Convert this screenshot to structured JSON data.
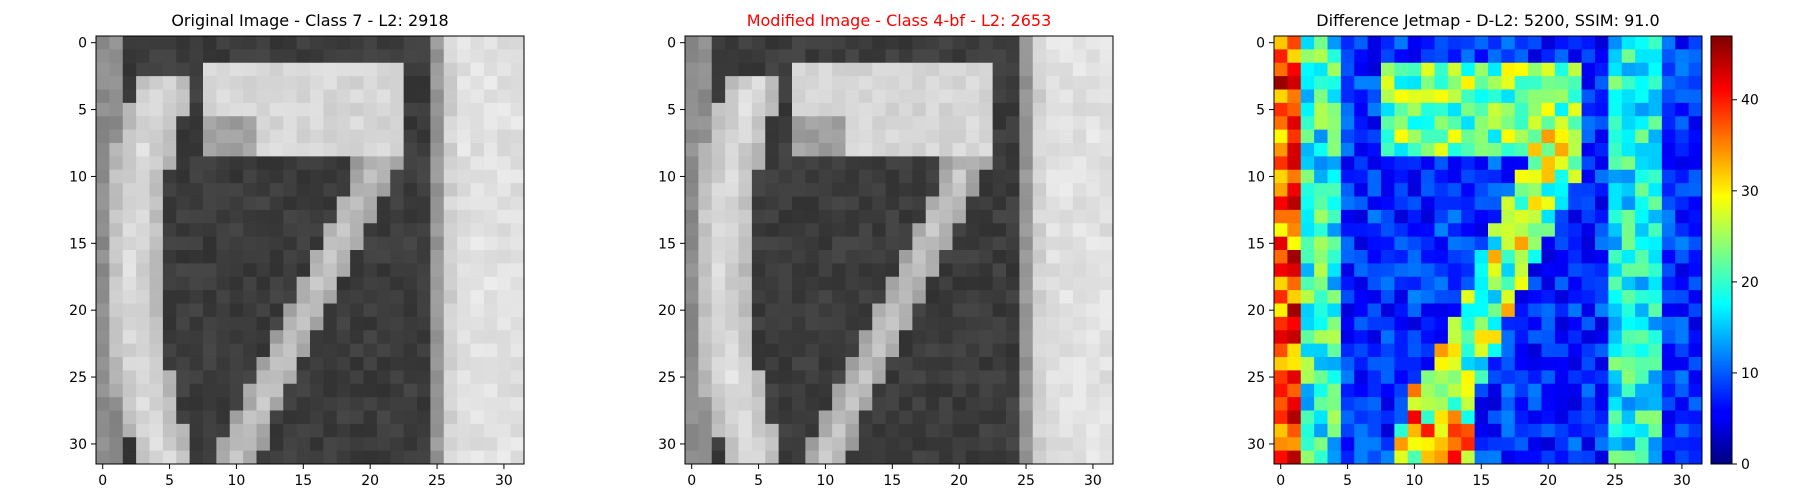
{
  "colors": {
    "modified_title": "#ff0000",
    "default_text": "#000000"
  },
  "chart_data": [
    {
      "type": "heatmap",
      "colormap": "gray",
      "title": "Original Image - Class 7 - L2: 2918",
      "grid": "32x32",
      "x_ticks": [
        "0",
        "5",
        "10",
        "15",
        "20",
        "25",
        "30"
      ],
      "y_ticks": [
        "0",
        "5",
        "10",
        "15",
        "20",
        "25",
        "30"
      ],
      "xlim": [
        -0.5,
        31.5
      ],
      "ylim": [
        31.5,
        -0.5
      ],
      "grid_lines": false
    },
    {
      "type": "heatmap",
      "colormap": "gray",
      "title": "Modified Image - Class 4-bf - L2: 2653",
      "title_color": "#ff0000",
      "grid": "32x32",
      "x_ticks": [
        "0",
        "5",
        "10",
        "15",
        "20",
        "25",
        "30"
      ],
      "y_ticks": [
        "0",
        "5",
        "10",
        "15",
        "20",
        "25",
        "30"
      ],
      "xlim": [
        -0.5,
        31.5
      ],
      "ylim": [
        31.5,
        -0.5
      ],
      "grid_lines": false
    },
    {
      "type": "heatmap",
      "colormap": "jet",
      "title": "Difference Jetmap - D-L2: 5200, SSIM: 91.0",
      "grid": "32x32",
      "x_ticks": [
        "0",
        "5",
        "10",
        "15",
        "20",
        "25",
        "30"
      ],
      "y_ticks": [
        "0",
        "5",
        "10",
        "15",
        "20",
        "25",
        "30"
      ],
      "xlim": [
        -0.5,
        31.5
      ],
      "ylim": [
        31.5,
        -0.5
      ],
      "grid_lines": false,
      "colorbar": {
        "range": [
          0,
          47
        ],
        "ticks": [
          "0",
          "10",
          "20",
          "30",
          "40"
        ],
        "placement": "right"
      }
    }
  ]
}
